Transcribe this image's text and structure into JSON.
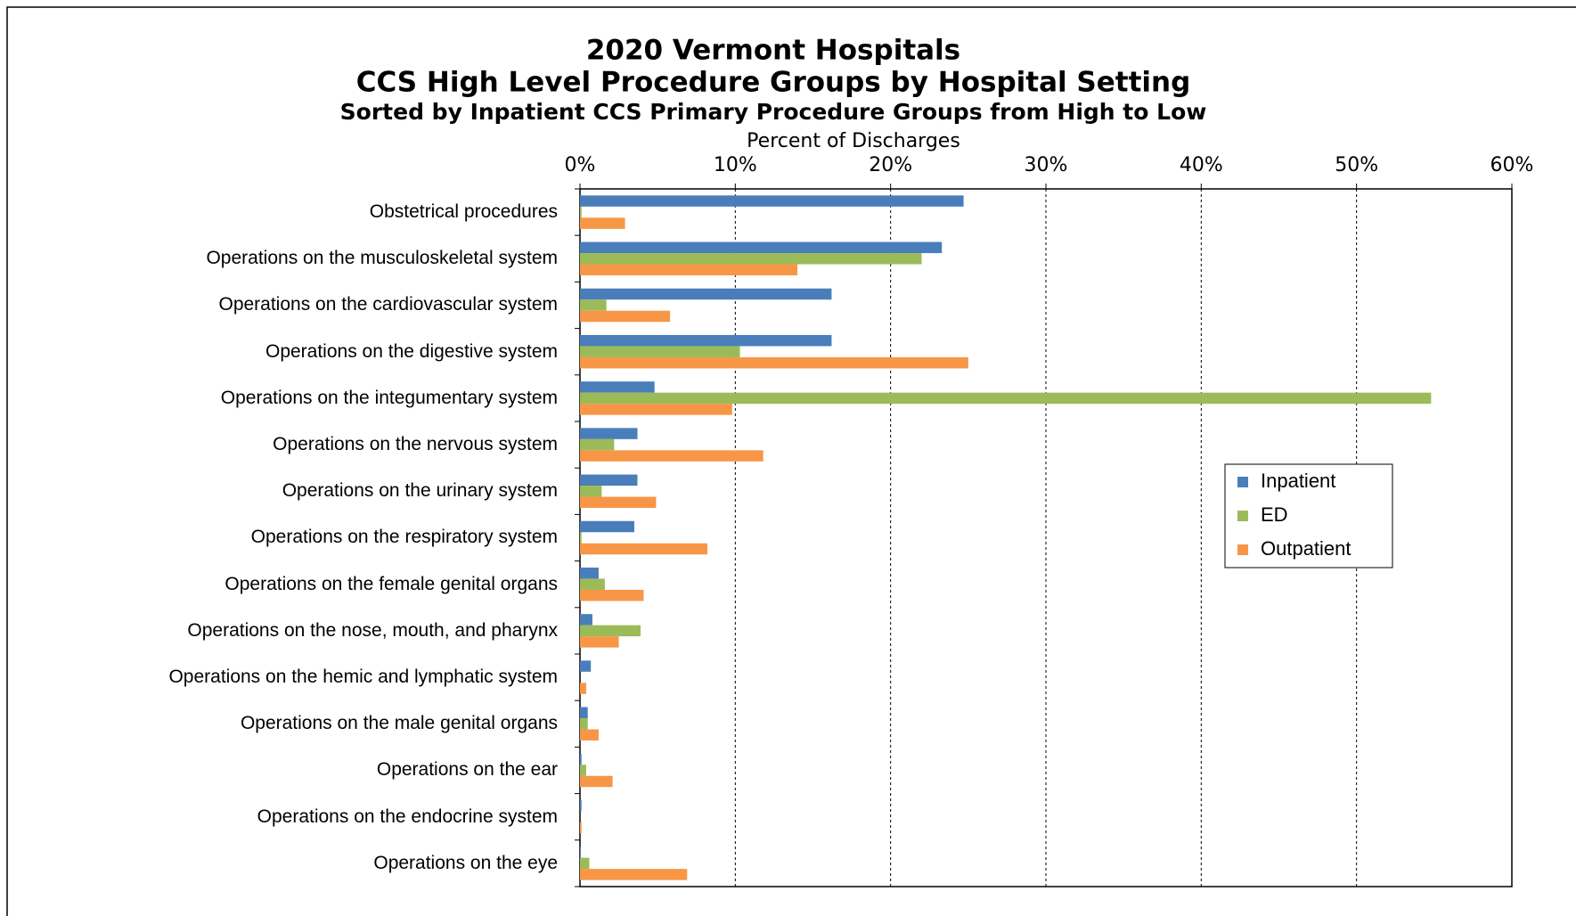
{
  "chart_data": {
    "type": "barh",
    "title": "2020 Vermont Hospitals",
    "subtitle": "CCS High Level Procedure Groups by Hospital Setting",
    "annotation": "Sorted by Inpatient CCS Primary Procedure Groups from High to Low",
    "xlabel": "Percent of Discharges",
    "categories": [
      "Obstetrical procedures",
      "Operations on the musculoskeletal system",
      "Operations on the cardiovascular system",
      "Operations on the digestive system",
      "Operations on the integumentary system",
      "Operations on the nervous system",
      "Operations on the urinary system",
      "Operations on the respiratory system",
      "Operations on the female genital organs",
      "Operations on the nose, mouth, and pharynx",
      "Operations on the hemic and lymphatic system",
      "Operations on the male genital organs",
      "Operations on the ear",
      "Operations on the endocrine system",
      "Operations on the eye"
    ],
    "series": [
      {
        "name": "Inpatient",
        "color": "#4a7ebb",
        "values": [
          24.7,
          23.3,
          16.2,
          16.2,
          4.8,
          3.7,
          3.7,
          3.5,
          1.2,
          0.8,
          0.7,
          0.5,
          0.1,
          0.1,
          0.05
        ]
      },
      {
        "name": "ED",
        "color": "#9bbb59",
        "values": [
          0.1,
          22.0,
          1.7,
          10.3,
          54.8,
          2.2,
          1.4,
          0.1,
          1.6,
          3.9,
          0,
          0.5,
          0.4,
          0,
          0.6
        ]
      },
      {
        "name": "Outpatient",
        "color": "#f79646",
        "values": [
          2.9,
          14.0,
          5.8,
          25.0,
          9.8,
          11.8,
          4.9,
          8.2,
          4.1,
          2.5,
          0.4,
          1.2,
          2.1,
          0.1,
          6.9
        ]
      }
    ],
    "xlim": [
      0,
      60
    ],
    "xticks": [
      {
        "value": 0,
        "label": "0%"
      },
      {
        "value": 10,
        "label": "10%"
      },
      {
        "value": 20,
        "label": "20%"
      },
      {
        "value": 30,
        "label": "30%"
      },
      {
        "value": 40,
        "label": "40%"
      },
      {
        "value": 50,
        "label": "50%"
      },
      {
        "value": 60,
        "label": "60%"
      }
    ],
    "grid": true,
    "legend": "right"
  }
}
